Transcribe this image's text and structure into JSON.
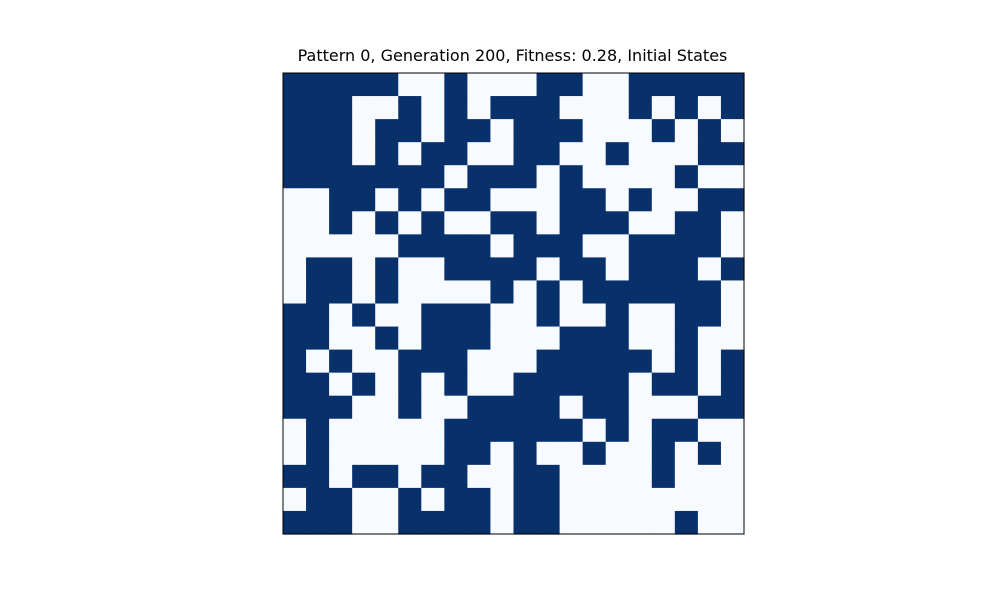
{
  "chart_data": {
    "type": "heatmap",
    "title": "Pattern 0, Generation 200, Fitness: 0.28, Initial States",
    "xlabel": "",
    "ylabel": "",
    "grid": false,
    "colors": {
      "0": "#f7fbff",
      "1": "#08306b",
      "frame": "#000000"
    },
    "rows": 20,
    "cols": 20,
    "values": [
      [
        1,
        1,
        1,
        1,
        1,
        0,
        0,
        1,
        0,
        0,
        0,
        1,
        1,
        0,
        0,
        1,
        1,
        1,
        1,
        1
      ],
      [
        1,
        1,
        1,
        0,
        0,
        1,
        0,
        1,
        0,
        1,
        1,
        1,
        0,
        0,
        0,
        1,
        0,
        1,
        0,
        1
      ],
      [
        1,
        1,
        1,
        0,
        1,
        1,
        0,
        1,
        1,
        0,
        1,
        1,
        1,
        0,
        0,
        0,
        1,
        0,
        1,
        0
      ],
      [
        1,
        1,
        1,
        0,
        1,
        0,
        1,
        1,
        0,
        0,
        1,
        1,
        0,
        0,
        1,
        0,
        0,
        0,
        1,
        1
      ],
      [
        1,
        1,
        1,
        1,
        1,
        1,
        1,
        0,
        1,
        1,
        1,
        0,
        1,
        0,
        0,
        0,
        0,
        1,
        0,
        0
      ],
      [
        0,
        0,
        1,
        1,
        0,
        1,
        0,
        1,
        1,
        0,
        0,
        0,
        1,
        1,
        0,
        1,
        0,
        0,
        1,
        1
      ],
      [
        0,
        0,
        1,
        0,
        1,
        0,
        1,
        0,
        0,
        1,
        1,
        0,
        1,
        1,
        1,
        0,
        0,
        1,
        1,
        0
      ],
      [
        0,
        0,
        0,
        0,
        0,
        1,
        1,
        1,
        1,
        0,
        1,
        1,
        1,
        0,
        0,
        1,
        1,
        1,
        1,
        0
      ],
      [
        0,
        1,
        1,
        0,
        1,
        0,
        0,
        1,
        1,
        1,
        1,
        0,
        1,
        1,
        0,
        1,
        1,
        1,
        0,
        1
      ],
      [
        0,
        1,
        1,
        0,
        1,
        0,
        0,
        0,
        0,
        1,
        0,
        1,
        0,
        1,
        1,
        1,
        1,
        1,
        1,
        0
      ],
      [
        1,
        1,
        0,
        1,
        0,
        0,
        1,
        1,
        1,
        0,
        0,
        1,
        0,
        0,
        1,
        0,
        0,
        1,
        1,
        0
      ],
      [
        1,
        1,
        0,
        0,
        1,
        0,
        1,
        1,
        1,
        0,
        0,
        0,
        1,
        1,
        1,
        0,
        0,
        1,
        0,
        0
      ],
      [
        1,
        0,
        1,
        0,
        0,
        1,
        1,
        1,
        0,
        0,
        0,
        1,
        1,
        1,
        1,
        1,
        0,
        1,
        0,
        1
      ],
      [
        1,
        1,
        0,
        1,
        0,
        1,
        0,
        1,
        0,
        0,
        1,
        1,
        1,
        1,
        1,
        0,
        1,
        1,
        0,
        1
      ],
      [
        1,
        1,
        1,
        0,
        0,
        1,
        0,
        0,
        1,
        1,
        1,
        1,
        0,
        1,
        1,
        0,
        0,
        0,
        1,
        1
      ],
      [
        0,
        1,
        0,
        0,
        0,
        0,
        0,
        1,
        1,
        1,
        1,
        1,
        1,
        0,
        1,
        0,
        1,
        1,
        0,
        0
      ],
      [
        0,
        1,
        0,
        0,
        0,
        0,
        0,
        1,
        1,
        0,
        1,
        0,
        0,
        1,
        0,
        0,
        1,
        0,
        1,
        0
      ],
      [
        1,
        1,
        0,
        1,
        1,
        0,
        1,
        1,
        0,
        0,
        1,
        1,
        0,
        0,
        0,
        0,
        1,
        0,
        0,
        0
      ],
      [
        0,
        1,
        1,
        0,
        0,
        1,
        0,
        1,
        1,
        0,
        1,
        1,
        0,
        0,
        0,
        0,
        0,
        0,
        0,
        0
      ],
      [
        1,
        1,
        1,
        0,
        0,
        1,
        1,
        1,
        1,
        0,
        1,
        1,
        0,
        0,
        0,
        0,
        0,
        1,
        0,
        0
      ]
    ]
  }
}
